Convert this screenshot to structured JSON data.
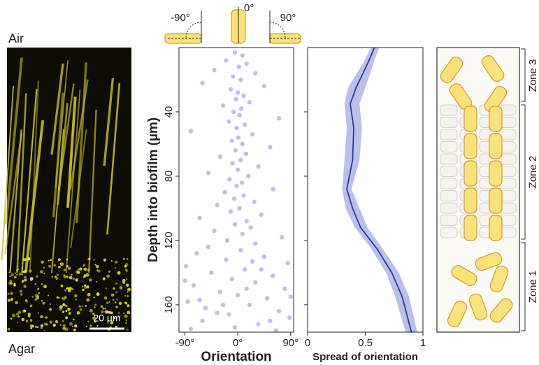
{
  "image": {
    "top_label": "Air",
    "bottom_label": "Agar",
    "scale_bar": "20 µm"
  },
  "orientation_icons": [
    "-90°",
    "0°",
    "90°"
  ],
  "chart_data": [
    {
      "type": "scatter",
      "x_label": "Orientation",
      "y_label": "Depth into biofilm (µm)",
      "color": "#5b63c9",
      "xlim": [
        -100,
        95
      ],
      "ylim": [
        0,
        177
      ],
      "y_inverted": true,
      "xticks": [
        {
          "value": -90,
          "label": "-90°"
        },
        {
          "value": 0,
          "label": "0°"
        },
        {
          "value": 90,
          "label": "90°"
        }
      ],
      "yticks": [
        40,
        80,
        120,
        160
      ],
      "x": [
        -5,
        8,
        -20,
        15,
        2,
        -40,
        30,
        -8,
        5,
        -60,
        45,
        -12,
        0,
        10,
        -3,
        20,
        -25,
        6,
        -7,
        3,
        70,
        -15,
        12,
        -2,
        -80,
        25,
        1,
        -10,
        8,
        55,
        -4,
        14,
        -30,
        5,
        -9,
        35,
        0,
        -50,
        18,
        -14,
        7,
        -2,
        60,
        -22,
        10,
        -6,
        28,
        -35,
        3,
        -12,
        40,
        -65,
        15,
        -5,
        22,
        -40,
        8,
        75,
        -18,
        30,
        -50,
        5,
        -70,
        45,
        -20,
        85,
        -88,
        12,
        -45,
        60,
        -10,
        30,
        -75,
        80,
        -30,
        0,
        50,
        -85,
        20,
        -55,
        70,
        -15,
        88,
        -60,
        35,
        -5,
        65,
        -90,
        90,
        -35,
        40,
        -65,
        15,
        55,
        -80,
        25,
        -25
      ],
      "y": [
        3,
        5,
        8,
        10,
        12,
        14,
        16,
        18,
        20,
        22,
        24,
        26,
        28,
        30,
        32,
        34,
        36,
        38,
        40,
        42,
        44,
        46,
        48,
        50,
        52,
        54,
        56,
        58,
        60,
        62,
        64,
        66,
        68,
        70,
        72,
        74,
        76,
        78,
        80,
        82,
        84,
        86,
        88,
        90,
        92,
        94,
        96,
        98,
        100,
        102,
        104,
        106,
        108,
        110,
        112,
        114,
        116,
        118,
        120,
        122,
        124,
        126,
        128,
        130,
        132,
        134,
        136,
        138,
        140,
        142,
        144,
        146,
        148,
        150,
        152,
        154,
        156,
        158,
        160,
        162,
        164,
        166,
        168,
        170,
        172,
        174,
        176,
        145,
        155,
        165,
        138,
        157,
        150,
        170,
        175,
        133,
        160
      ]
    },
    {
      "type": "line",
      "x_label": "Spread of orientation",
      "color": "#2b3a9c",
      "band_color": "#aab0e6",
      "xlim": [
        0,
        1
      ],
      "ylim": [
        0,
        177
      ],
      "y_inverted": true,
      "xticks": [
        0,
        0.5,
        1
      ],
      "yticks": [
        40,
        80,
        120,
        160
      ],
      "y": [
        0,
        10,
        25,
        35,
        50,
        70,
        88,
        100,
        112,
        125,
        140,
        155,
        177
      ],
      "x": [
        0.58,
        0.52,
        0.42,
        0.37,
        0.4,
        0.39,
        0.34,
        0.39,
        0.46,
        0.6,
        0.73,
        0.82,
        0.9
      ],
      "lower": [
        0.55,
        0.48,
        0.35,
        0.32,
        0.34,
        0.32,
        0.3,
        0.33,
        0.41,
        0.55,
        0.68,
        0.76,
        0.85
      ],
      "upper": [
        0.62,
        0.57,
        0.5,
        0.45,
        0.47,
        0.45,
        0.38,
        0.45,
        0.52,
        0.65,
        0.79,
        0.88,
        0.95
      ]
    }
  ],
  "schematic": {
    "zones": [
      "Zone 3",
      "Zone 2",
      "Zone 1"
    ]
  }
}
